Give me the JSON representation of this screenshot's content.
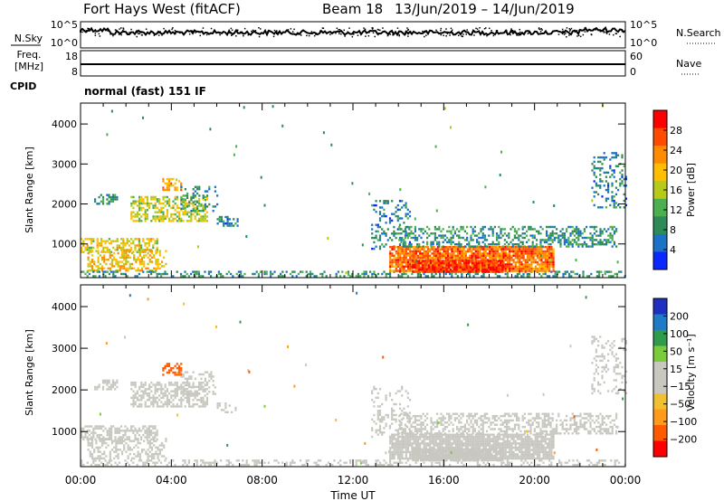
{
  "header": {
    "station": "Fort Hays West (fitACF)",
    "beam": "Beam 18",
    "date_range": "13/Jun/2019 – 14/Jun/2019"
  },
  "nsky_panel": {
    "left_label": "N.Sky",
    "right_label": "N.Search",
    "left_ticks": [
      "10^5",
      "10^0"
    ],
    "right_ticks": [
      "10^5",
      "10^0"
    ]
  },
  "freq_panel": {
    "left_label_1": "Freq.",
    "left_label_2": "[MHz]",
    "right_label": "Nave",
    "left_ticks": [
      "18",
      "8"
    ],
    "right_ticks": [
      "60",
      "0"
    ]
  },
  "cpid": {
    "label": "CPID",
    "text": "normal (fast) 151 IF"
  },
  "power_panel": {
    "ylabel": "Slant Range [km]",
    "yticks": [
      "4000",
      "3000",
      "2000",
      "1000"
    ],
    "colorbar_label": "Power [dB]",
    "colorbar_ticks": [
      "28",
      "24",
      "20",
      "16",
      "12",
      "8",
      "4"
    ],
    "colorbar_colors": [
      "#ff0000",
      "#ff4a00",
      "#ff8c00",
      "#ffbf00",
      "#b7c919",
      "#4caf50",
      "#2e8b57",
      "#1a73c7",
      "#0a28ff"
    ]
  },
  "velocity_panel": {
    "ylabel": "Slant Range [km]",
    "yticks": [
      "4000",
      "3000",
      "2000",
      "1000"
    ],
    "colorbar_label": "Velocity [m s⁻¹]",
    "colorbar_ticks": [
      "200",
      "100",
      "50",
      "15",
      "−15",
      "−50",
      "−100",
      "−200"
    ],
    "colorbar_colors": [
      "#1f2fbf",
      "#1f7ac7",
      "#2e9c4a",
      "#7acc3a",
      "#c8c8c0",
      "#c8c8c0",
      "#f0c030",
      "#ff9a1a",
      "#ff5a00",
      "#ff0000"
    ]
  },
  "xaxis": {
    "label": "Time UT",
    "ticks": [
      "00:00",
      "04:00",
      "08:00",
      "12:00",
      "16:00",
      "20:00",
      "00:00"
    ]
  },
  "chart_data": {
    "type": "heatmap",
    "title": "Fort Hays West (fitACF)   Beam 18   13/Jun/2019 – 14/Jun/2019",
    "xlabel": "Time UT",
    "ylabel": "Slant Range [km]",
    "xlim_hours": [
      0,
      24
    ],
    "ylim_km": [
      180,
      4500
    ],
    "power_scale_db": [
      0,
      32
    ],
    "velocity_scale_ms": [
      -250,
      250
    ],
    "echo_regions": [
      {
        "t0": 0.0,
        "t1": 3.4,
        "r0": 800,
        "r1": 1150,
        "power": 18,
        "velocity": 0,
        "density": 0.55
      },
      {
        "t0": 0.3,
        "t1": 3.8,
        "r0": 330,
        "r1": 850,
        "power": 20,
        "velocity": 0,
        "density": 0.45
      },
      {
        "t0": 0.6,
        "t1": 1.6,
        "r0": 2000,
        "r1": 2250,
        "power": 8,
        "velocity": 0,
        "density": 0.5
      },
      {
        "t0": 2.2,
        "t1": 5.6,
        "r0": 1600,
        "r1": 2200,
        "power": 16,
        "velocity": 0,
        "density": 0.55
      },
      {
        "t0": 3.6,
        "t1": 4.4,
        "r0": 2350,
        "r1": 2650,
        "power": 22,
        "velocity": -200,
        "density": 0.6
      },
      {
        "t0": 4.4,
        "t1": 6.0,
        "r0": 1850,
        "r1": 2450,
        "power": 8,
        "velocity": 0,
        "density": 0.3
      },
      {
        "t0": 6.0,
        "t1": 6.9,
        "r0": 1450,
        "r1": 1700,
        "power": 6,
        "velocity": 0,
        "density": 0.35
      },
      {
        "t0": 0.0,
        "t1": 24.0,
        "r0": 180,
        "r1": 330,
        "power": 8,
        "velocity": -40,
        "density": 0.35
      },
      {
        "t0": 12.8,
        "t1": 14.5,
        "r0": 900,
        "r1": 2100,
        "power": 6,
        "velocity": 0,
        "density": 0.25
      },
      {
        "t0": 13.6,
        "t1": 20.8,
        "r0": 350,
        "r1": 950,
        "power": 26,
        "velocity": 0,
        "density": 0.9
      },
      {
        "t0": 14.6,
        "t1": 18.6,
        "r0": 300,
        "r1": 600,
        "power": 30,
        "velocity": 0,
        "density": 0.9
      },
      {
        "t0": 14.0,
        "t1": 23.6,
        "r0": 950,
        "r1": 1450,
        "power": 8,
        "velocity": 0,
        "density": 0.45
      },
      {
        "t0": 22.5,
        "t1": 24.0,
        "r0": 1900,
        "r1": 3300,
        "power": 6,
        "velocity": 0,
        "density": 0.25
      }
    ]
  }
}
